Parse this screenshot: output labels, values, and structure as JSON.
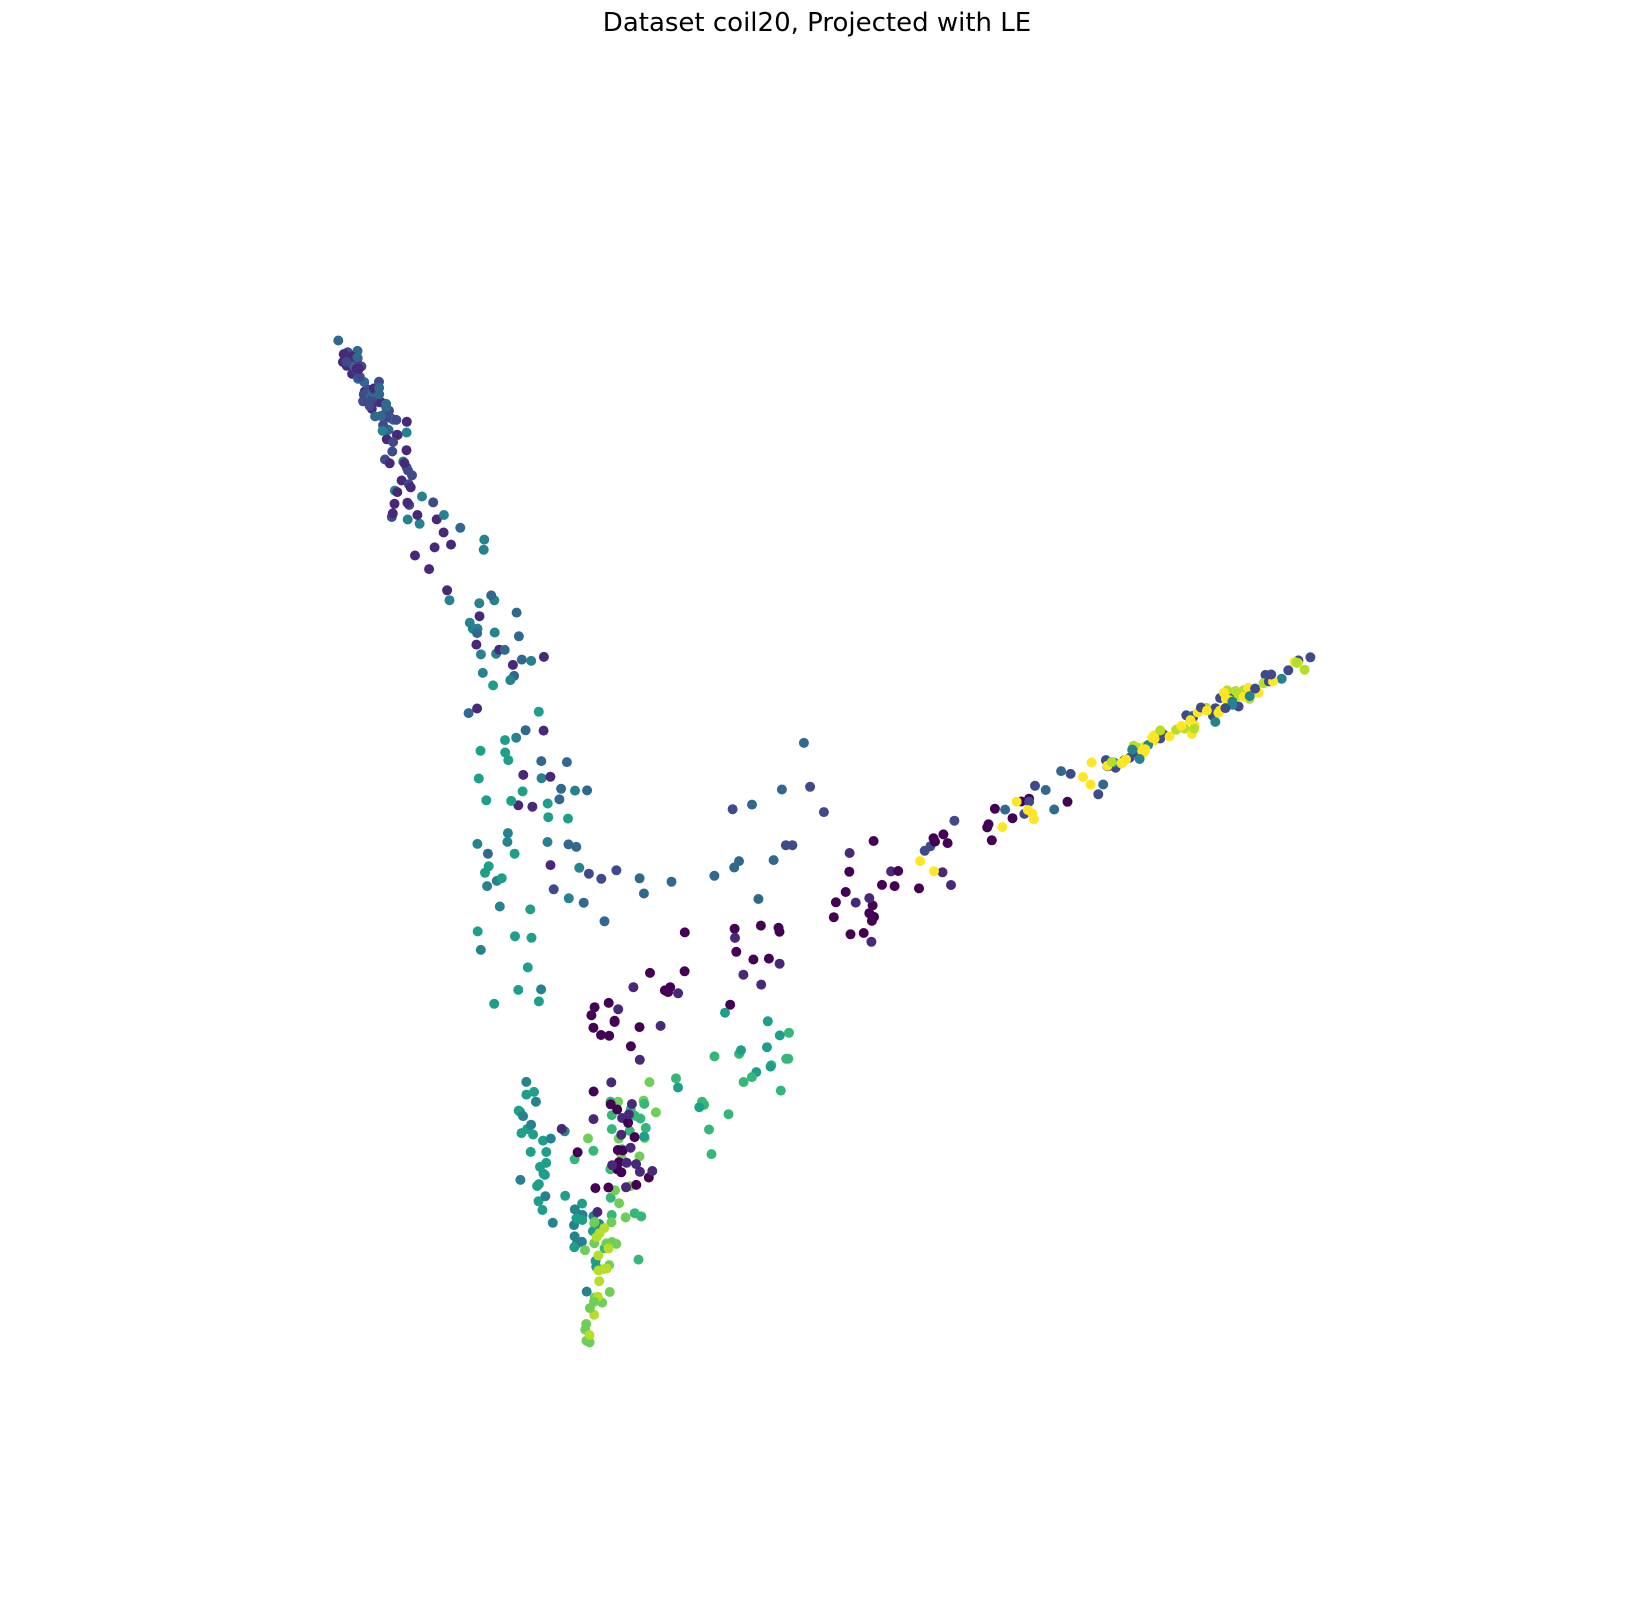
{
  "chart_data": {
    "type": "scatter",
    "title": "Dataset coil20, Projected with LE",
    "xlabel": "",
    "ylabel": "",
    "axes_visible": false,
    "grid": false,
    "legend": "none",
    "xlim": [
      0,
      100
    ],
    "ylim": [
      0,
      100
    ],
    "colormap": "viridis",
    "palette": [
      "#440154",
      "#482878",
      "#3e4a89",
      "#31688e",
      "#26828e",
      "#1f9e89",
      "#35b779",
      "#6ece58",
      "#b5de2b",
      "#fde725"
    ],
    "clusters": [
      {
        "name": "top-left-branch-tip",
        "cat": [
          1,
          2,
          3
        ],
        "from": [
          -2,
          96
        ],
        "to": [
          3,
          88
        ],
        "n": 60,
        "spread": 0.6
      },
      {
        "name": "top-left-branch-mid",
        "cat": [
          1,
          2,
          4
        ],
        "from": [
          3,
          88
        ],
        "to": [
          6,
          79
        ],
        "n": 30,
        "spread": 1.0
      },
      {
        "name": "left-arm-upper",
        "cat": [
          3,
          4,
          1
        ],
        "from": [
          6,
          79
        ],
        "to": [
          14,
          66
        ],
        "n": 28,
        "spread": 1.8
      },
      {
        "name": "left-arm-lower",
        "cat": [
          3,
          4,
          5,
          1
        ],
        "from": [
          14,
          66
        ],
        "to": [
          20,
          44
        ],
        "n": 40,
        "spread": 2.4
      },
      {
        "name": "left-arm-teal",
        "cat": [
          4,
          5
        ],
        "from": [
          13,
          60
        ],
        "to": [
          15,
          30
        ],
        "n": 25,
        "spread": 2.2
      },
      {
        "name": "mid-fan-blue",
        "cat": [
          3,
          2
        ],
        "from": [
          22,
          40
        ],
        "to": [
          48,
          52
        ],
        "n": 22,
        "spread": 2.5
      },
      {
        "name": "vertex-teal-arc",
        "cat": [
          5,
          4
        ],
        "from": [
          16,
          22
        ],
        "to": [
          23,
          5
        ],
        "n": 45,
        "spread": 1.4
      },
      {
        "name": "vertex-green",
        "cat": [
          6,
          7
        ],
        "from": [
          23,
          5
        ],
        "to": [
          28,
          22
        ],
        "n": 40,
        "spread": 1.5
      },
      {
        "name": "vertex-lightgreen-tail",
        "cat": [
          7,
          8
        ],
        "from": [
          25,
          9
        ],
        "to": [
          23,
          -3
        ],
        "n": 25,
        "spread": 0.5
      },
      {
        "name": "vertex-purple",
        "cat": [
          0,
          1
        ],
        "from": [
          24,
          20
        ],
        "to": [
          27,
          14
        ],
        "n": 30,
        "spread": 2.0
      },
      {
        "name": "right-arm-purple",
        "cat": [
          0,
          1,
          0
        ],
        "from": [
          24,
          28
        ],
        "to": [
          62,
          46
        ],
        "n": 60,
        "spread": 2.0
      },
      {
        "name": "right-arm-green",
        "cat": [
          6,
          5
        ],
        "from": [
          29,
          15
        ],
        "to": [
          42,
          28
        ],
        "n": 25,
        "spread": 2.2
      },
      {
        "name": "right-arm-mid",
        "cat": [
          2,
          3,
          9,
          0
        ],
        "from": [
          55,
          44
        ],
        "to": [
          75,
          54
        ],
        "n": 30,
        "spread": 1.2
      },
      {
        "name": "right-tip",
        "cat": [
          2,
          4,
          8,
          9
        ],
        "from": [
          75,
          54
        ],
        "to": [
          96,
          65
        ],
        "n": 90,
        "spread": 0.5
      }
    ]
  }
}
